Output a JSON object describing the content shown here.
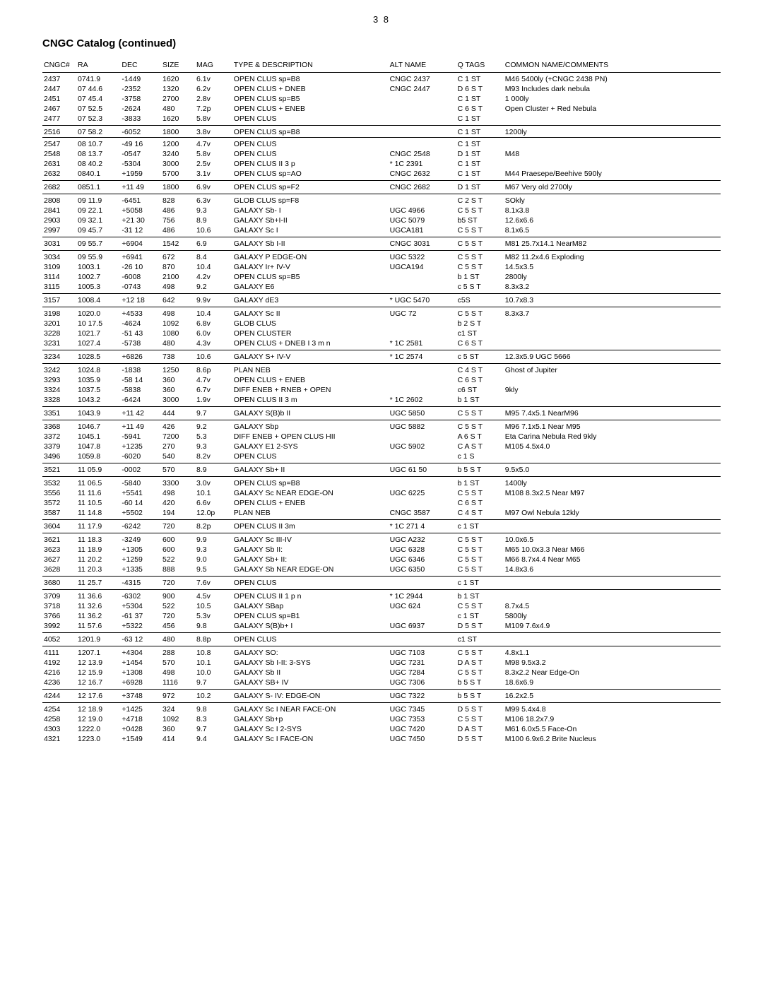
{
  "page_number": "3 8",
  "title": "CNGC Catalog (continued)",
  "columns": [
    "CNGC#",
    "RA",
    "DEC",
    "SIZE",
    "MAG",
    "TYPE & DESCRIPTION",
    "ALT NAME",
    "Q TAGS",
    "COMMON NAME/COMMENTS"
  ],
  "rows": [
    {
      "sep": true,
      "c": [
        "2437",
        "0741.9",
        "-1449",
        "1620",
        "6.1v",
        "OPEN CLUS sp=B8",
        "CNGC 2437",
        "C 1 ST",
        "M46 5400ly (+CNGC 2438 PN)"
      ]
    },
    {
      "c": [
        "2447",
        "07 44.6",
        "-2352",
        "1320",
        "6.2v",
        "OPEN CLUS + DNEB",
        "CNGC 2447",
        "D 6 S T",
        "M93 Includes dark nebula"
      ]
    },
    {
      "c": [
        "2451",
        "07 45.4",
        "-3758",
        "2700",
        "2.8v",
        "OPEN CLUS  sp=B5",
        "",
        "C 1 ST",
        "1 000ly"
      ]
    },
    {
      "c": [
        "2467",
        "07 52.5",
        "-2624",
        "480",
        "7.2p",
        "OPEN CLUS + ENEB",
        "",
        "C 6 S T",
        "Open Cluster + Red Nebula"
      ]
    },
    {
      "sepb": true,
      "c": [
        "2477",
        "07 52.3",
        "-3833",
        "1620",
        "5.8v",
        "OPEN CLUS",
        "",
        "C 1 ST",
        ""
      ]
    },
    {
      "sep": true,
      "c": [
        "2516",
        "07 58.2",
        "-6052",
        "1800",
        "3.8v",
        "OPEN CLUS sp=B8",
        "",
        "C 1 ST",
        "1200ly"
      ]
    },
    {
      "sep": true,
      "c": [
        "2547",
        "08 10.7",
        "-49 16",
        "1200",
        "4.7v",
        "OPEN CLUS",
        "",
        "C 1 ST",
        ""
      ]
    },
    {
      "c": [
        "2548",
        "08 13.7",
        "-0547",
        "3240",
        "5.8v",
        "OPEN CLUS",
        "CNGC 2548",
        "D 1 ST",
        "M48"
      ]
    },
    {
      "c": [
        "2631",
        "08 40.2",
        "-5304",
        "3000",
        "2.5v",
        "OPEN CLUS  II 3 p",
        "* 1C 2391",
        "C 1 ST",
        ""
      ]
    },
    {
      "sepb": true,
      "c": [
        "2632",
        "0840.1",
        "+1959",
        "5700",
        "3.1v",
        "OPEN CLUS sp=AO",
        "CNGC 2632",
        "C 1 ST",
        "M44 Praesepe/Beehive 590ly"
      ]
    },
    {
      "sep": true,
      "sepb": true,
      "c": [
        "2682",
        "0851.1",
        "+11 49",
        "1800",
        "6.9v",
        "OPEN CLUS sp=F2",
        "CNGC 2682",
        "D 1 ST",
        "M67 Very old 2700ly"
      ]
    },
    {
      "sep": true,
      "c": [
        "2808",
        "09 11.9",
        "-6451",
        "828",
        "6.3v",
        "GLOB CLUS sp=F8",
        "",
        "C 2 S T",
        "SOkly"
      ]
    },
    {
      "c": [
        "2841",
        "09 22.1",
        "+5058",
        "486",
        "9.3",
        "GALAXY Sb- I",
        "UGC 4966",
        "C 5 S T",
        "8.1x3.8"
      ]
    },
    {
      "c": [
        "2903",
        "09 32.1",
        "+21 30",
        "756",
        "8.9",
        "GALAXY Sb+I-II",
        "UGC 5079",
        "b5 ST",
        "12.6x6.6"
      ]
    },
    {
      "sepb": true,
      "c": [
        "2997",
        "09 45.7",
        "-31 12",
        "486",
        "10.6",
        "GALAXY Sc I",
        "UGCA181",
        "C 5 S T",
        "8.1x6.5"
      ]
    },
    {
      "sep": true,
      "sepb": true,
      "c": [
        "3031",
        "09 55.7",
        "+6904",
        "1542",
        "6.9",
        "GALAXY Sb I-II",
        "CNGC 3031",
        "C 5 S T",
        "M81   25.7x14.1   NearM82"
      ]
    },
    {
      "sep": true,
      "c": [
        "3034",
        "09 55.9",
        "+6941",
        "672",
        "8.4",
        "GALAXY P  EDGE-ON",
        "UGC 5322",
        "C 5 S T",
        "M82  11.2x4.6  Exploding"
      ]
    },
    {
      "c": [
        "3109",
        "1003.1",
        "-26 10",
        "870",
        "10.4",
        "GALAXY Ir+ IV-V",
        "UGCA194",
        "C 5 S T",
        "14.5x3.5"
      ]
    },
    {
      "c": [
        "3114",
        "1002.7",
        "-6008",
        "2100",
        "4.2v",
        "OPEN CLUS sp=B5",
        "",
        "b 1 ST",
        "2800ly"
      ]
    },
    {
      "sepb": true,
      "c": [
        "3115",
        "1005.3",
        "-0743",
        "498",
        "9.2",
        "GALAXY E6",
        "",
        "c 5 S T",
        "8.3x3.2"
      ]
    },
    {
      "sep": true,
      "sepb": true,
      "c": [
        "3157",
        "1008.4",
        "+12 18",
        "642",
        "9.9v",
        "GALAXY dE3",
        "* UGC 5470",
        "c5S",
        "10.7x8.3"
      ]
    },
    {
      "sep": true,
      "c": [
        "3198",
        "1020.0",
        "+4533",
        "498",
        "10.4",
        "GALAXY Sc II",
        "UGC 72",
        "C 5 S T",
        "8.3x3.7"
      ]
    },
    {
      "c": [
        "3201",
        "10 17.5",
        "-4624",
        "1092",
        "6.8v",
        "GLOB CLUS",
        "",
        "b 2 S T",
        ""
      ]
    },
    {
      "c": [
        "3228",
        "1021.7",
        "-51 43",
        "1080",
        "6.0v",
        "OPEN CLUSTER",
        "",
        "c1 ST",
        ""
      ]
    },
    {
      "sepb": true,
      "c": [
        "3231",
        "1027.4",
        "-5738",
        "480",
        "4.3v",
        "OPEN CLUS + DNEB  I 3 m n",
        "* 1C 2581",
        "C 6 S T",
        ""
      ]
    },
    {
      "sep": true,
      "sepb": true,
      "c": [
        "3234",
        "1028.5",
        "+6826",
        "738",
        "10.6",
        "GALAXY S+ IV-V",
        "* 1C 2574",
        "c 5 ST",
        "12.3x5.9  UGC 5666"
      ]
    },
    {
      "sep": true,
      "c": [
        "3242",
        "1024.8",
        "-1838",
        "1250",
        "8.6p",
        "PLAN NEB",
        "",
        "C 4 S T",
        "Ghost of Jupiter"
      ]
    },
    {
      "c": [
        "3293",
        "1035.9",
        "-58 14",
        "360",
        "4.7v",
        "OPEN CLUS + ENEB",
        "",
        "C 6 S T",
        ""
      ]
    },
    {
      "c": [
        "3324",
        "1037.5",
        "-5838",
        "360",
        "6.7v",
        "DIFF ENEB + RNEB + OPEN",
        "",
        "c6 ST",
        "9kly"
      ]
    },
    {
      "sepb": true,
      "c": [
        "3328",
        "1043.2",
        "-6424",
        "3000",
        "1.9v",
        "OPEN CLUS  II 3 m",
        "* 1C 2602",
        "b 1 ST",
        ""
      ]
    },
    {
      "sep": true,
      "sepb": true,
      "c": [
        "3351",
        "1043.9",
        "+11 42",
        "444",
        "9.7",
        "GALAXY  S(B)b II",
        "UGC 5850",
        "C 5 S T",
        "M95 7.4x5.1   NearM96"
      ]
    },
    {
      "sep": true,
      "c": [
        "3368",
        "1046.7",
        "+11 49",
        "426",
        "9.2",
        "GALAXY  Sbp",
        "UGC 5882",
        "C 5 S T",
        "M96 7.1x5.1  Near M95"
      ]
    },
    {
      "c": [
        "3372",
        "1045.1",
        "-5941",
        "7200",
        "5.3",
        "DIFF ENEB + OPEN CLUS HII",
        "",
        "A 6 S T",
        "Eta Carina Nebula Red 9kly"
      ]
    },
    {
      "c": [
        "3379",
        "1047.8",
        "+1235",
        "270",
        "9.3",
        "GALAXY E1  2-SYS",
        "UGC 5902",
        "C A S T",
        "M105 4.5x4.0"
      ]
    },
    {
      "sepb": true,
      "c": [
        "3496",
        "1059.8",
        "-6020",
        "540",
        "8.2v",
        "OPEN CLUS",
        "",
        "c 1 S",
        ""
      ]
    },
    {
      "sep": true,
      "sepb": true,
      "c": [
        "3521",
        "11 05.9",
        "-0002",
        "570",
        "8.9",
        "GALAXY Sb+ II",
        "UGC 61 50",
        "b 5 S T",
        "9.5x5.0"
      ]
    },
    {
      "sep": true,
      "c": [
        "3532",
        "11 06.5",
        "-5840",
        "3300",
        "3.0v",
        "OPEN CLUS sp=B8",
        "",
        "b 1 ST",
        "1400ly"
      ]
    },
    {
      "c": [
        "3556",
        "11 11.6",
        "+5541",
        "498",
        "10.1",
        "GALAXY  Sc  NEAR EDGE-ON",
        "UGC 6225",
        "C 5 S T",
        "M108 8.3x2.5  Near M97"
      ]
    },
    {
      "c": [
        "3572",
        "11 10.5",
        "-60 14",
        "420",
        "6.6v",
        "OPEN CLUS + ENEB",
        "",
        "C 6 S T",
        ""
      ]
    },
    {
      "sepb": true,
      "c": [
        "3587",
        "11 14.8",
        "+5502",
        "194",
        "12.0p",
        "PLAN NEB",
        "CNGC 3587",
        "C 4 S T",
        "M97 Owl Nebula 12kly"
      ]
    },
    {
      "sep": true,
      "sepb": true,
      "c": [
        "3604",
        "11 17.9",
        "-6242",
        "720",
        "8.2p",
        "OPEN CLUS  II 3m",
        "* 1C 271 4",
        "c 1 ST",
        ""
      ]
    },
    {
      "sep": true,
      "c": [
        "3621",
        "11 18.3",
        "-3249",
        "600",
        "9.9",
        "GALAXY Sc III-IV",
        "UGC A232",
        "C 5 S T",
        "10.0x6.5"
      ]
    },
    {
      "c": [
        "3623",
        "11 18.9",
        "+1305",
        "600",
        "9.3",
        "GALAXY Sb II:",
        "UGC 6328",
        "C 5 S T",
        "M65  10.0x3.3 Near M66"
      ]
    },
    {
      "c": [
        "3627",
        "11 20.2",
        "+1259",
        "522",
        "9.0",
        "GALAXY Sb+ II:",
        "UGC 6346",
        "C 5 S T",
        "M66 8.7x4.4 Near M65"
      ]
    },
    {
      "sepb": true,
      "c": [
        "3628",
        "11 20.3",
        "+1335",
        "888",
        "9.5",
        "GALAXY Sb NEAR EDGE-ON",
        "UGC 6350",
        "C 5 S T",
        "14.8x3.6"
      ]
    },
    {
      "sep": true,
      "sepb": true,
      "c": [
        "3680",
        "11 25.7",
        "-4315",
        "720",
        "7.6v",
        "OPEN CLUS",
        "",
        "c 1 ST",
        ""
      ]
    },
    {
      "sep": true,
      "c": [
        "3709",
        "11 36.6",
        "-6302",
        "900",
        "4.5v",
        "OPEN CLUS  II 1 p n",
        "* 1C 2944",
        "b 1 ST",
        ""
      ]
    },
    {
      "c": [
        "3718",
        "11 32.6",
        "+5304",
        "522",
        "10.5",
        "GALAXY SBap",
        "UGC 624",
        "C 5 S T",
        "8.7x4.5"
      ]
    },
    {
      "c": [
        "3766",
        "11 36.2",
        "-61 37",
        "720",
        "5.3v",
        "OPEN CLUS sp=B1",
        "",
        "c 1 ST",
        "5800ly"
      ]
    },
    {
      "sepb": true,
      "c": [
        "3992",
        "11 57.6",
        "+5322",
        "456",
        "9.8",
        "GALAXY S(B)b+ I",
        "UGC 6937",
        "D 5 S T",
        "M109 7.6x4.9"
      ]
    },
    {
      "sep": true,
      "sepb": true,
      "c": [
        "4052",
        "1201.9",
        "-63 12",
        "480",
        "8.8p",
        "OPEN CLUS",
        "",
        "c1 ST",
        ""
      ]
    },
    {
      "sep": true,
      "c": [
        "4111",
        "1207.1",
        "+4304",
        "288",
        "10.8",
        "GALAXY SO:",
        "UGC 7103",
        "C 5 S T",
        "4.8x1.1"
      ]
    },
    {
      "c": [
        "4192",
        "12 13.9",
        "+1454",
        "570",
        "10.1",
        "GALAXY Sb I-II: 3-SYS",
        "UGC 7231",
        "D A S T",
        "M98 9.5x3.2"
      ]
    },
    {
      "c": [
        "4216",
        "12 15.9",
        "+1308",
        "498",
        "10.0",
        "GALAXY Sb II",
        "UGC 7284",
        "C 5 S T",
        "8.3x2.2 Near Edge-On"
      ]
    },
    {
      "sepb": true,
      "c": [
        "4236",
        "12 16.7",
        "+6928",
        "1116",
        "9.7",
        "GALAXY SB+ IV",
        "UGC 7306",
        "b 5 S T",
        "18.6x6.9"
      ]
    },
    {
      "sep": true,
      "sepb": true,
      "c": [
        "4244",
        "12 17.6",
        "+3748",
        "972",
        "10.2",
        "GALAXY S- IV:  EDGE-ON",
        "UGC 7322",
        "b 5 S T",
        "16.2x2.5"
      ]
    },
    {
      "sep": true,
      "c": [
        "4254",
        "12 18.9",
        "+1425",
        "324",
        "9.8",
        "GALAXY Sc I  NEAR FACE-ON",
        "UGC 7345",
        "D 5 S T",
        "M99 5.4x4.8"
      ]
    },
    {
      "c": [
        "4258",
        "12 19.0",
        "+4718",
        "1092",
        "8.3",
        "GALAXY Sb+p",
        "UGC 7353",
        "C 5 S T",
        "M106  18.2x7.9"
      ]
    },
    {
      "c": [
        "4303",
        "1222.0",
        "+0428",
        "360",
        "9.7",
        "GALAXY Sc I  2-SYS",
        "UGC 7420",
        "D A S T",
        "M61   6.0x5.5  Face-On"
      ]
    },
    {
      "c": [
        "4321",
        "1223.0",
        "+1549",
        "414",
        "9.4",
        "GALAXY Sc I  FACE-ON",
        "UGC 7450",
        "D 5 S T",
        "M100 6.9x6.2 Brite Nucleus"
      ]
    }
  ]
}
